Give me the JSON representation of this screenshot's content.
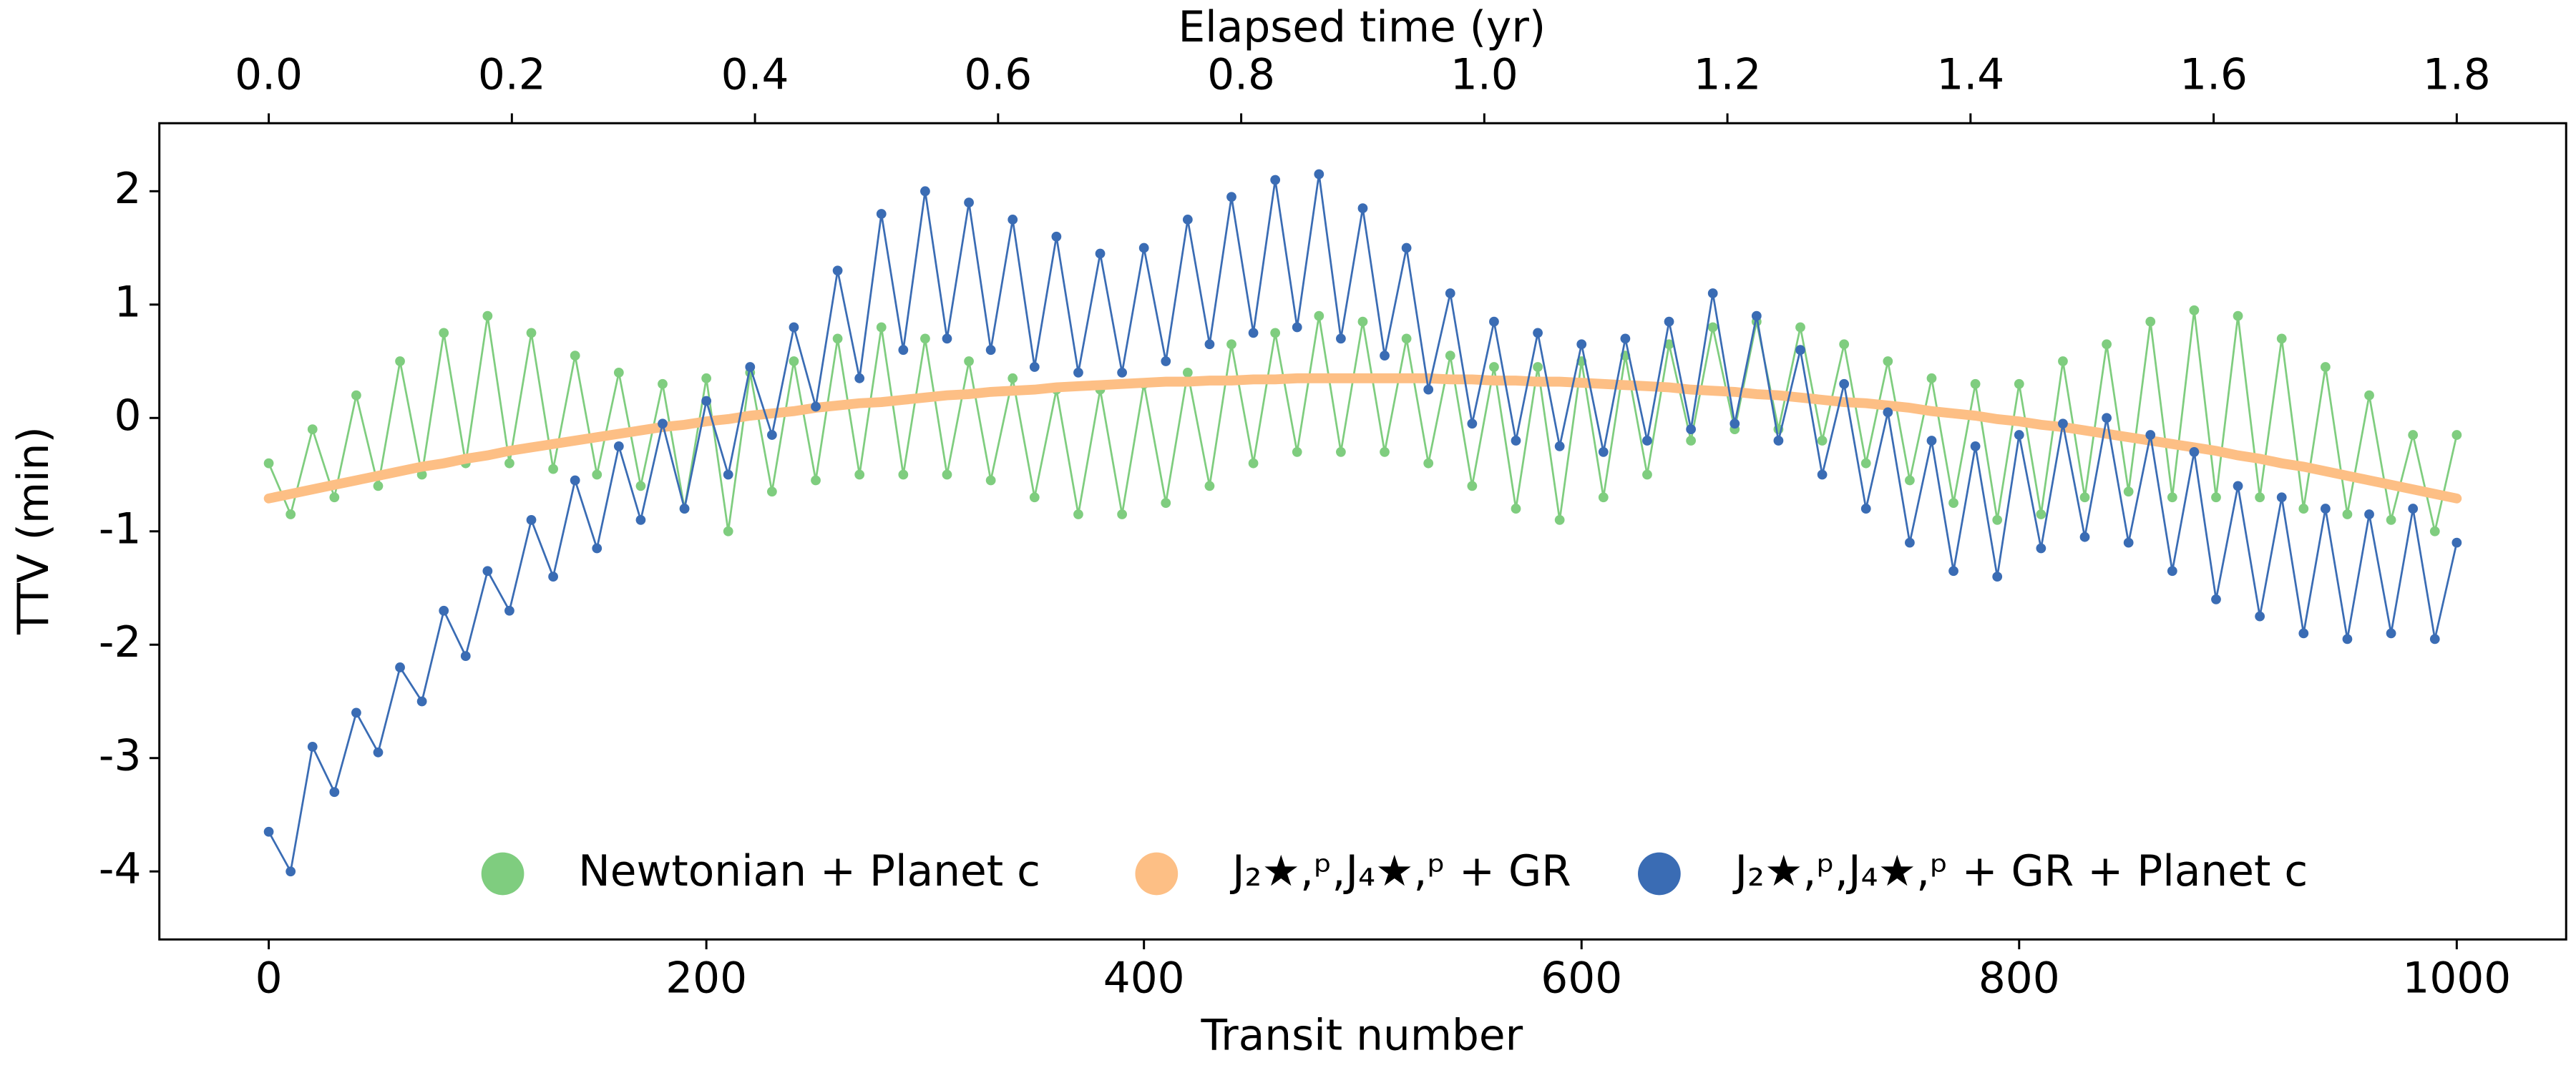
{
  "chart_data": {
    "type": "line",
    "xlabel": "Transit number",
    "ylabel": "TTV (min)",
    "x2label": "Elapsed time (yr)",
    "xlim": [
      -50,
      1050
    ],
    "xticks": [
      0,
      200,
      400,
      600,
      800,
      1000
    ],
    "x2lim": [
      -0.09,
      1.89
    ],
    "x2ticks": [
      {
        "value": 0,
        "label": "0.0"
      },
      {
        "value": 0.2,
        "label": "0.2"
      },
      {
        "value": 0.4,
        "label": "0.4"
      },
      {
        "value": 0.6,
        "label": "0.6"
      },
      {
        "value": 0.8,
        "label": "0.8"
      },
      {
        "value": 1,
        "label": "1.0"
      },
      {
        "value": 1.2,
        "label": "1.2"
      },
      {
        "value": 1.4,
        "label": "1.4"
      },
      {
        "value": 1.6,
        "label": "1.6"
      },
      {
        "value": 1.8,
        "label": "1.8"
      }
    ],
    "ylim": [
      -4.6,
      2.6
    ],
    "yticks": [
      -4,
      -3,
      -2,
      -1,
      0,
      1,
      2
    ],
    "grid": false,
    "legend": "lower center",
    "x": [
      0,
      10,
      20,
      30,
      40,
      50,
      60,
      70,
      80,
      90,
      100,
      110,
      120,
      130,
      140,
      150,
      160,
      170,
      180,
      190,
      200,
      210,
      220,
      230,
      240,
      250,
      260,
      270,
      280,
      290,
      300,
      310,
      320,
      330,
      340,
      350,
      360,
      370,
      380,
      390,
      400,
      410,
      420,
      430,
      440,
      450,
      460,
      470,
      480,
      490,
      500,
      510,
      520,
      530,
      540,
      550,
      560,
      570,
      580,
      590,
      600,
      610,
      620,
      630,
      640,
      650,
      660,
      670,
      680,
      690,
      700,
      710,
      720,
      730,
      740,
      750,
      760,
      770,
      780,
      790,
      800,
      810,
      820,
      830,
      840,
      850,
      860,
      870,
      880,
      890,
      900,
      910,
      920,
      930,
      940,
      950,
      960,
      970,
      980,
      990,
      1000
    ],
    "series": [
      {
        "name": "Newtonian + Planet c",
        "color": "#7fcd7f",
        "markers": true,
        "values": [
          -0.4,
          -0.85,
          -0.1,
          -0.7,
          0.2,
          -0.6,
          0.5,
          -0.5,
          0.75,
          -0.4,
          0.9,
          -0.4,
          0.75,
          -0.45,
          0.55,
          -0.5,
          0.4,
          -0.6,
          0.3,
          -0.8,
          0.35,
          -1.0,
          0.4,
          -0.65,
          0.5,
          -0.55,
          0.7,
          -0.5,
          0.8,
          -0.5,
          0.7,
          -0.5,
          0.5,
          -0.55,
          0.35,
          -0.7,
          0.25,
          -0.85,
          0.25,
          -0.85,
          0.3,
          -0.75,
          0.4,
          -0.6,
          0.65,
          -0.4,
          0.75,
          -0.3,
          0.9,
          -0.3,
          0.85,
          -0.3,
          0.7,
          -0.4,
          0.55,
          -0.6,
          0.45,
          -0.8,
          0.45,
          -0.9,
          0.5,
          -0.7,
          0.55,
          -0.5,
          0.65,
          -0.2,
          0.8,
          -0.1,
          0.85,
          -0.1,
          0.8,
          -0.2,
          0.65,
          -0.4,
          0.5,
          -0.55,
          0.35,
          -0.75,
          0.3,
          -0.9,
          0.3,
          -0.85,
          0.5,
          -0.7,
          0.65,
          -0.65,
          0.85,
          -0.7,
          0.95,
          -0.7,
          0.9,
          -0.7,
          0.7,
          -0.8,
          0.45,
          -0.85,
          0.2,
          -0.9,
          -0.15,
          -1.0,
          -0.15
        ]
      },
      {
        "name": "J₂★,ᵖ,J₄★,ᵖ + GR",
        "color": "#fdbf85",
        "markers": false,
        "values": [
          -0.71,
          -0.67,
          -0.63,
          -0.59,
          -0.55,
          -0.51,
          -0.47,
          -0.43,
          -0.4,
          -0.36,
          -0.33,
          -0.29,
          -0.26,
          -0.23,
          -0.2,
          -0.17,
          -0.14,
          -0.11,
          -0.08,
          -0.06,
          -0.03,
          -0.01,
          0.02,
          0.04,
          0.06,
          0.09,
          0.11,
          0.13,
          0.14,
          0.16,
          0.18,
          0.2,
          0.21,
          0.23,
          0.24,
          0.25,
          0.27,
          0.28,
          0.29,
          0.3,
          0.31,
          0.32,
          0.32,
          0.33,
          0.33,
          0.34,
          0.34,
          0.35,
          0.35,
          0.35,
          0.35,
          0.35,
          0.35,
          0.35,
          0.34,
          0.34,
          0.33,
          0.33,
          0.32,
          0.32,
          0.31,
          0.3,
          0.29,
          0.28,
          0.27,
          0.25,
          0.24,
          0.23,
          0.21,
          0.2,
          0.18,
          0.16,
          0.14,
          0.13,
          0.11,
          0.09,
          0.06,
          0.04,
          0.02,
          -0.01,
          -0.03,
          -0.06,
          -0.08,
          -0.11,
          -0.14,
          -0.17,
          -0.2,
          -0.23,
          -0.26,
          -0.29,
          -0.33,
          -0.36,
          -0.4,
          -0.43,
          -0.47,
          -0.51,
          -0.55,
          -0.59,
          -0.63,
          -0.67,
          -0.71
        ]
      },
      {
        "name": "J₂★,ᵖ,J₄★,ᵖ + GR + Planet c",
        "color": "#3a6cb4",
        "markers": true,
        "values": [
          -3.65,
          -4.0,
          -2.9,
          -3.3,
          -2.6,
          -2.95,
          -2.2,
          -2.5,
          -1.7,
          -2.1,
          -1.35,
          -1.7,
          -0.9,
          -1.4,
          -0.55,
          -1.15,
          -0.25,
          -0.9,
          -0.05,
          -0.8,
          0.15,
          -0.5,
          0.45,
          -0.15,
          0.8,
          0.1,
          1.3,
          0.35,
          1.8,
          0.6,
          2.0,
          0.7,
          1.9,
          0.6,
          1.75,
          0.45,
          1.6,
          0.4,
          1.45,
          0.4,
          1.5,
          0.5,
          1.75,
          0.65,
          1.95,
          0.75,
          2.1,
          0.8,
          2.15,
          0.7,
          1.85,
          0.55,
          1.5,
          0.25,
          1.1,
          -0.05,
          0.85,
          -0.2,
          0.75,
          -0.25,
          0.65,
          -0.3,
          0.7,
          -0.2,
          0.85,
          -0.1,
          1.1,
          -0.05,
          0.9,
          -0.2,
          0.6,
          -0.5,
          0.3,
          -0.8,
          0.05,
          -1.1,
          -0.2,
          -1.35,
          -0.25,
          -1.4,
          -0.15,
          -1.15,
          -0.05,
          -1.05,
          0.0,
          -1.1,
          -0.15,
          -1.35,
          -0.3,
          -1.6,
          -0.6,
          -1.75,
          -0.7,
          -1.9,
          -0.8,
          -1.95,
          -0.85,
          -1.9,
          -0.8,
          -1.95,
          -1.1
        ]
      }
    ]
  }
}
